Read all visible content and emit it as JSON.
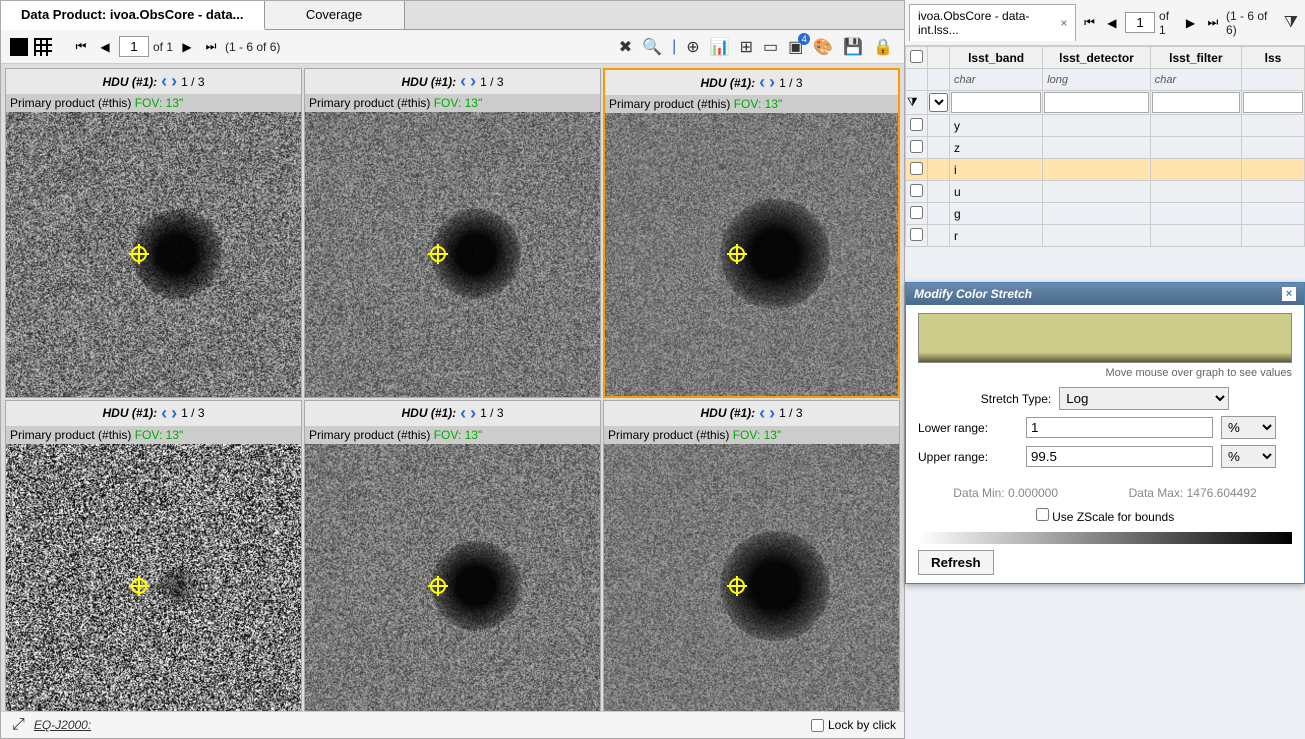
{
  "left": {
    "tabs": {
      "tab1": "Data Product: ivoa.ObsCore - data...",
      "tab2": "Coverage"
    },
    "toolbar": {
      "page_value": "1",
      "page_of": "of 1",
      "range": "(1 - 6 of 6)"
    },
    "cells": {
      "hdu_label": "HDU (#1):",
      "hdu_page": "1 / 3",
      "sub_label": "Primary product (#this)",
      "fov": "FOV: 13\""
    },
    "footer": {
      "coord": "EQ-J2000:",
      "lock": "Lock by click"
    }
  },
  "right": {
    "tab_label": "ivoa.ObsCore - data-int.lss...",
    "page_value": "1",
    "page_of": "of 1",
    "range": "(1 - 6 of 6)",
    "columns": {
      "c1": "lsst_band",
      "c2": "lsst_detector",
      "c3": "lsst_filter",
      "c4": "lss",
      "t1": "char",
      "t2": "long",
      "t3": "char"
    },
    "rows": {
      "r0": "y",
      "r1": "z",
      "r2": "i",
      "r3": "u",
      "r4": "g",
      "r5": "r"
    }
  },
  "modal": {
    "title": "Modify Color Stretch",
    "help": "Move mouse over graph to see values",
    "stretch_label": "Stretch Type:",
    "stretch_value": "Log",
    "lower_label": "Lower range:",
    "lower_value": "1",
    "upper_label": "Upper range:",
    "upper_value": "99.5",
    "unit": "%",
    "datamin": "Data Min: 0.000000",
    "datamax": "Data Max: 1476.604492",
    "zscale": "Use ZScale for bounds",
    "refresh": "Refresh"
  }
}
